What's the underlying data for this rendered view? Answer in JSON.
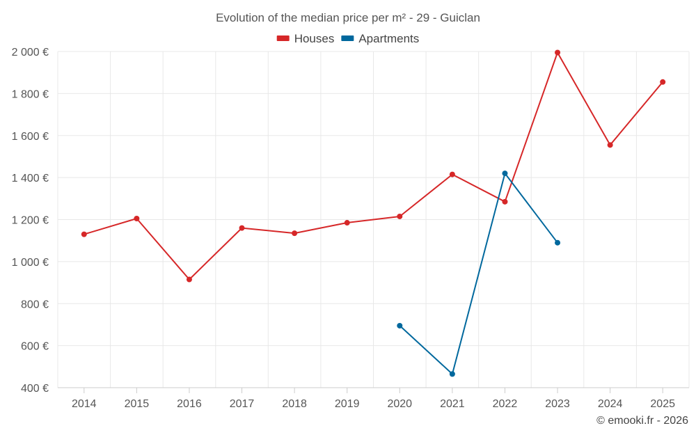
{
  "chart_data": {
    "type": "line",
    "title": "Evolution of the median price per m² - 29 - Guiclan",
    "xlabel": "",
    "ylabel": "",
    "categories": [
      "2014",
      "2015",
      "2016",
      "2017",
      "2018",
      "2019",
      "2020",
      "2021",
      "2022",
      "2023",
      "2024",
      "2025"
    ],
    "ylim": [
      400,
      2000
    ],
    "yticks": [
      400,
      600,
      800,
      1000,
      1200,
      1400,
      1600,
      1800,
      2000
    ],
    "ytick_labels": [
      "400 €",
      "600 €",
      "800 €",
      "1 000 €",
      "1 200 €",
      "1 400 €",
      "1 600 €",
      "1 800 €",
      "2 000 €"
    ],
    "grid": true,
    "legend_position": "top-center",
    "series": [
      {
        "name": "Houses",
        "color": "#d62728",
        "values": [
          1130,
          1205,
          915,
          1160,
          1135,
          1185,
          1215,
          1415,
          1285,
          1995,
          1555,
          1855
        ]
      },
      {
        "name": "Apartments",
        "color": "#00689d",
        "values": [
          null,
          null,
          null,
          null,
          null,
          null,
          695,
          465,
          1420,
          1090,
          null,
          null
        ]
      }
    ]
  },
  "credit": "© emooki.fr - 2026"
}
